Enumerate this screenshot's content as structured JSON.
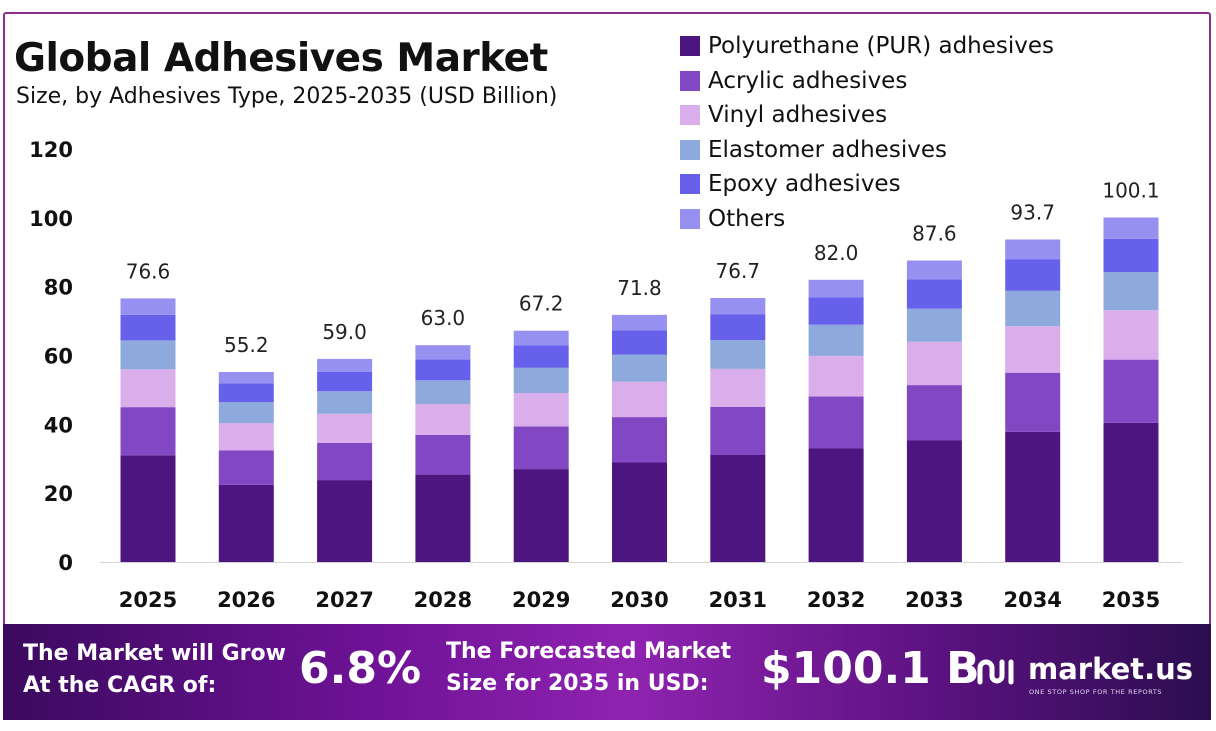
{
  "title": "Global Adhesives Market",
  "subtitle": "Size, by Adhesives Type, 2025-2035 (USD Billion)",
  "colors": {
    "border": "#8c2f8c",
    "pur": "#4d1580",
    "acrylic": "#8248c4",
    "vinyl": "#d9aeea",
    "elastomer": "#8eaadc",
    "epoxy": "#6660ea",
    "others": "#9691f0",
    "footer_gradient": [
      "#3b0a5e",
      "#8f23b0",
      "#2c0d4f"
    ]
  },
  "chart_data": {
    "type": "bar",
    "stacked": true,
    "title": "Global Adhesives Market",
    "subtitle": "Size, by Adhesives Type, 2025-2035 (USD Billion)",
    "categories": [
      "2025",
      "2026",
      "2027",
      "2028",
      "2029",
      "2030",
      "2031",
      "2032",
      "2033",
      "2034",
      "2035"
    ],
    "totals": [
      76.6,
      55.2,
      59.0,
      63.0,
      67.2,
      71.8,
      76.7,
      82.0,
      87.6,
      93.7,
      100.1
    ],
    "total_labels": [
      "76.6",
      "55.2",
      "59.0",
      "63.0",
      "67.2",
      "71.8",
      "76.7",
      "82.0",
      "87.6",
      "93.7",
      "100.1"
    ],
    "series": [
      {
        "name": "Polyurethane (PUR) adhesives",
        "color": "#4d1580",
        "values": [
          31.0,
          22.4,
          23.8,
          25.4,
          27.0,
          28.9,
          31.1,
          33.0,
          35.3,
          37.8,
          40.4
        ]
      },
      {
        "name": "Acrylic adhesives",
        "color": "#8248c4",
        "values": [
          14.0,
          10.0,
          10.8,
          11.5,
          12.4,
          13.2,
          14.0,
          15.1,
          16.1,
          17.2,
          18.4
        ]
      },
      {
        "name": "Vinyl adhesives",
        "color": "#d9aeea",
        "values": [
          11.0,
          8.0,
          8.5,
          9.0,
          9.7,
          10.3,
          11.0,
          11.8,
          12.6,
          13.5,
          14.4
        ]
      },
      {
        "name": "Elastomer adhesives",
        "color": "#8eaadc",
        "values": [
          8.4,
          6.1,
          6.5,
          6.9,
          7.4,
          7.9,
          8.4,
          9.0,
          9.6,
          10.3,
          11.0
        ]
      },
      {
        "name": "Epoxy adhesives",
        "color": "#6660ea",
        "values": [
          7.4,
          5.4,
          5.7,
          6.1,
          6.5,
          7.0,
          7.4,
          8.0,
          8.5,
          9.1,
          9.7
        ]
      },
      {
        "name": "Others",
        "color": "#9691f0",
        "values": [
          4.8,
          3.3,
          3.7,
          4.1,
          4.2,
          4.5,
          4.8,
          5.1,
          5.5,
          5.8,
          6.2
        ]
      }
    ],
    "ylim": [
      0,
      120
    ],
    "yticks": [
      0,
      20,
      40,
      60,
      80,
      100,
      120
    ],
    "xlabel": "",
    "ylabel": "",
    "grid": false,
    "legend_position": "top-right"
  },
  "footer": {
    "cagr_label_line1": "The Market will Grow",
    "cagr_label_line2": "At the CAGR of:",
    "cagr_value": "6.8%",
    "forecast_label_line1": "The Forecasted Market",
    "forecast_label_line2": "Size for 2035 in USD:",
    "forecast_value": "$100.1 B",
    "brand_name": "market.us",
    "brand_tagline": "ONE STOP SHOP FOR THE REPORTS",
    "brand_icon": "market-us-logo-icon"
  }
}
